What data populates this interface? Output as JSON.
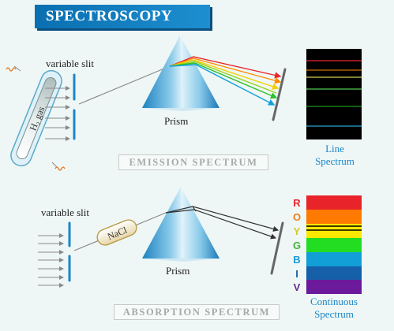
{
  "title": "SPECTROSCOPY",
  "emission": {
    "slit_label": "variable slit",
    "tube_label": "H₂ gas",
    "prism_label": "Prism",
    "caption": "EMISSION SPECTRUM",
    "spectrum_label_line1": "Line",
    "spectrum_label_line2": "Spectrum"
  },
  "absorption": {
    "slit_label": "variable slit",
    "sample_label": "NaCl",
    "prism_label": "Prism",
    "caption": "ABSORPTION SPECTRUM",
    "spectrum_label_line1": "Continuous",
    "spectrum_label_line2": "Spectrum",
    "letters": [
      "R",
      "O",
      "Y",
      "G",
      "B",
      "I",
      "V"
    ],
    "letter_colors": [
      "#e8242a",
      "#f07d1a",
      "#d8c81a",
      "#44b23a",
      "#1a9ad6",
      "#1a5fa8",
      "#6a2a8a"
    ]
  },
  "colors": {
    "band_red": "#e8242a",
    "band_orange": "#ff7a00",
    "band_yellow": "#ffe800",
    "band_green": "#22dd22",
    "band_blue": "#129fd8",
    "band_indigo": "#1560a8",
    "band_violet": "#6a1a9a",
    "emission_lines": [
      "#e8242a",
      "#ff8c00",
      "#ffff66",
      "#66ff66",
      "#33ccff"
    ]
  }
}
